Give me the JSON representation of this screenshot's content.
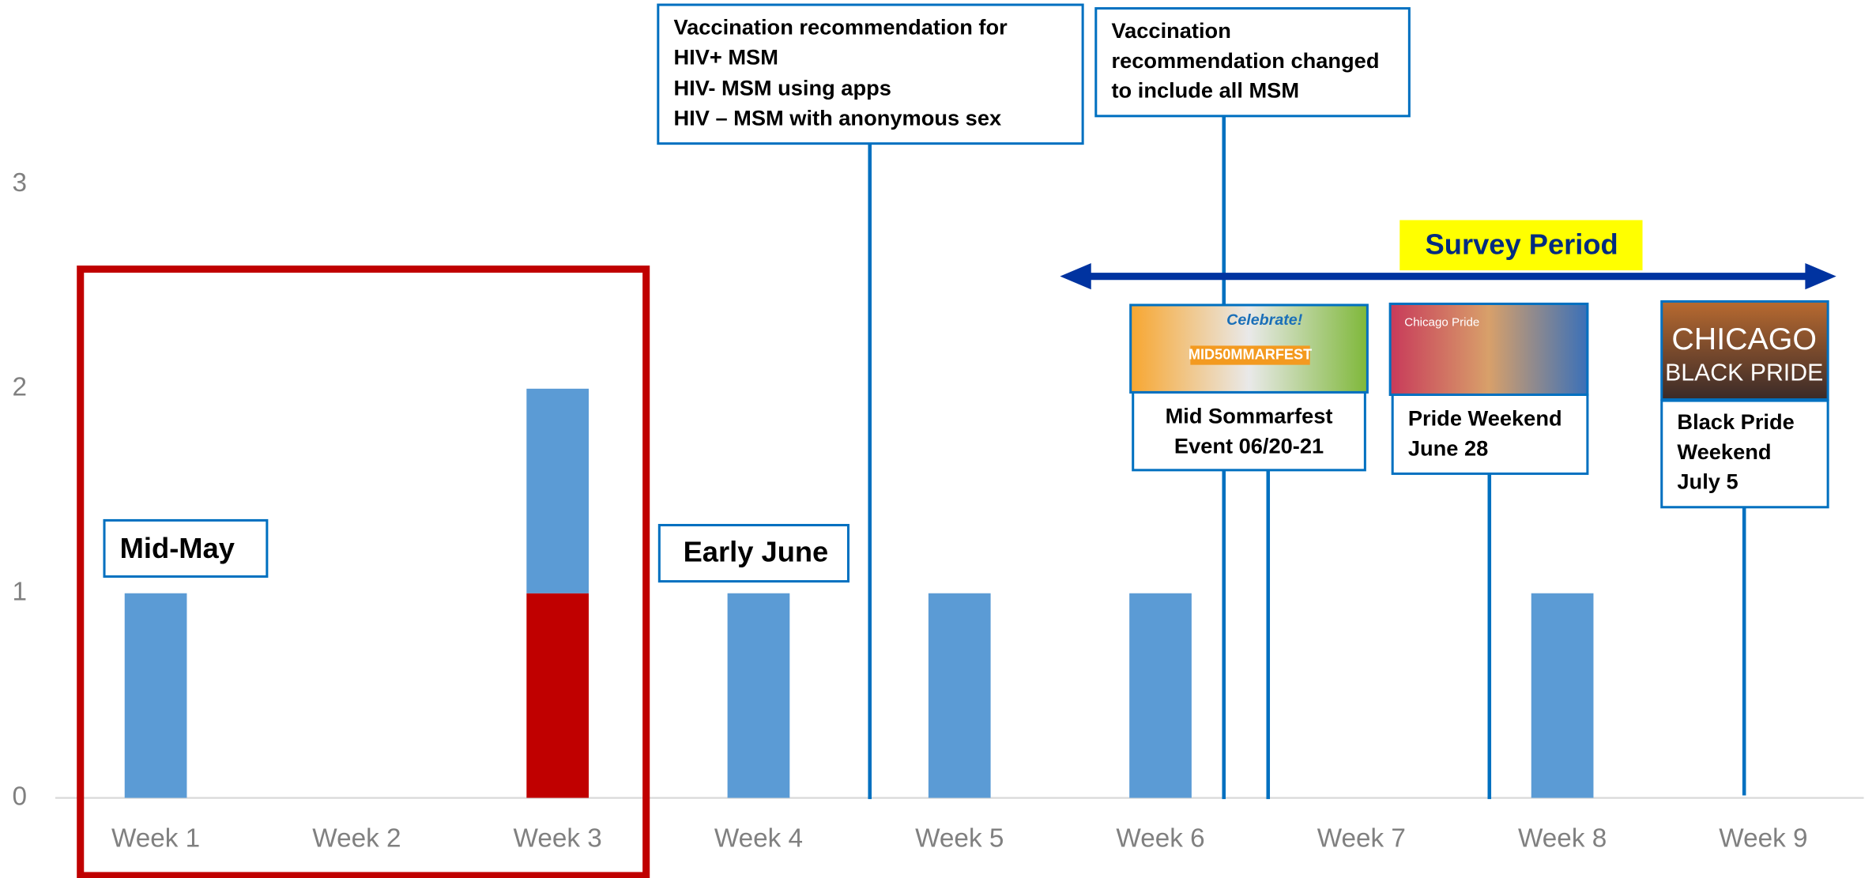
{
  "chart_data": {
    "type": "bar",
    "stacked": true,
    "categories": [
      "Week 1",
      "Week 2",
      "Week 3",
      "Week 4",
      "Week 5",
      "Week 6",
      "Week 7",
      "Week 8",
      "Week 9"
    ],
    "series": [
      {
        "color": "#c00000",
        "values": [
          0,
          0,
          1,
          0,
          0,
          0,
          0,
          0,
          0
        ]
      },
      {
        "color": "#5b9bd5",
        "values": [
          1,
          0,
          1,
          1,
          1,
          1,
          0,
          1,
          0
        ]
      }
    ],
    "ylim": [
      0,
      3.9
    ],
    "yticks": [
      0,
      1,
      2,
      3
    ],
    "grid": false,
    "annotations": [
      {
        "lines": [
          "Mid-May"
        ]
      },
      {
        "lines": [
          "Early June"
        ]
      },
      {
        "lines": [
          "Vaccination recommendation for",
          "HIV+ MSM",
          "HIV- MSM using apps",
          "HIV – MSM with anonymous sex"
        ]
      },
      {
        "lines": [
          "Vaccination",
          "recommendation changed",
          "to include all MSM"
        ]
      },
      {
        "lines": [
          "Mid Sommarfest",
          "Event  06/20-21"
        ]
      },
      {
        "lines": [
          "Pride Weekend",
          "June 28"
        ]
      },
      {
        "lines": [
          "Black Pride",
          "Weekend",
          "July 5"
        ]
      },
      {
        "lines": [
          "Survey Period"
        ]
      }
    ],
    "image_texts": [
      "Celebrate!",
      "MID50MMARFEST",
      "Chicago Pride",
      "CHICAGO",
      "BLACK PRIDE"
    ]
  }
}
